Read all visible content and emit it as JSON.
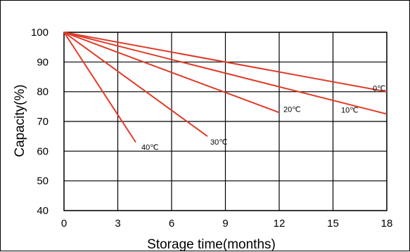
{
  "chart_data": {
    "type": "line",
    "xlabel": "Storage time(months)",
    "ylabel": "Capacity(%)",
    "xlim": [
      0,
      18
    ],
    "ylim": [
      40,
      100
    ],
    "xticks": [
      0,
      3,
      6,
      9,
      12,
      15,
      18
    ],
    "yticks": [
      40,
      50,
      60,
      70,
      80,
      90,
      100
    ],
    "grid": true,
    "series": [
      {
        "name": "0℃",
        "x": [
          0,
          18
        ],
        "y": [
          100,
          80
        ],
        "color": "#e03a28"
      },
      {
        "name": "10℃",
        "x": [
          0,
          18
        ],
        "y": [
          100,
          72.5
        ],
        "color": "#e03a28"
      },
      {
        "name": "20℃",
        "x": [
          0,
          12
        ],
        "y": [
          100,
          73
        ],
        "color": "#e03a28"
      },
      {
        "name": "30℃",
        "x": [
          0,
          8
        ],
        "y": [
          100,
          65
        ],
        "color": "#e03a28"
      },
      {
        "name": "40℃",
        "x": [
          0,
          4
        ],
        "y": [
          100,
          63
        ],
        "color": "#e03a28"
      }
    ]
  }
}
